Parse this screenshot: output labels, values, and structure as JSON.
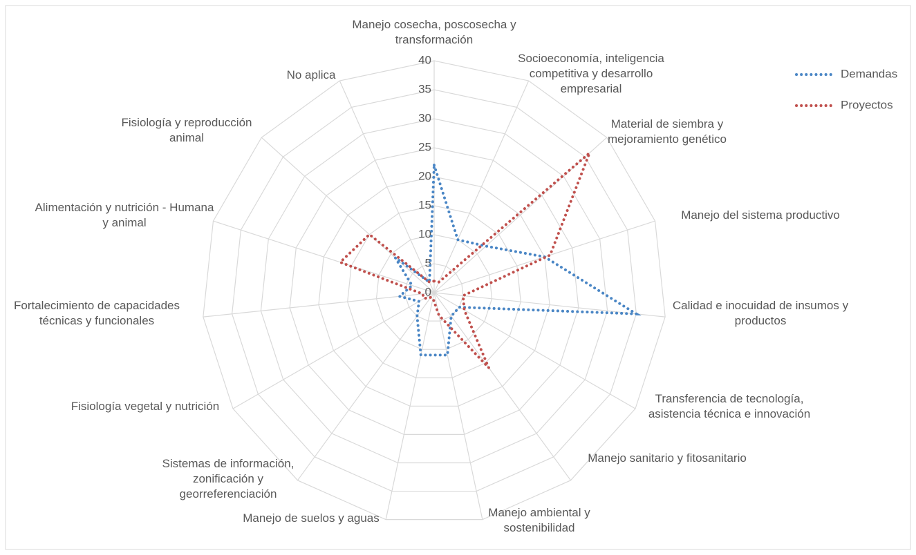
{
  "chart_data": {
    "type": "radar",
    "categories": [
      "Manejo cosecha, poscosecha y transformación",
      "Socioeconomía, inteligencia competitiva y desarrollo empresarial",
      "Material de siembra y mejoramiento genético",
      "Manejo del sistema productivo",
      "Calidad e inocuidad de insumos y productos",
      "Transferencia de tecnología, asistencia técnica e innovación",
      "Manejo sanitario y fitosanitario",
      "Manejo ambiental y sostenibilidad",
      "Manejo de suelos y aguas",
      "Sistemas de información, zonificación y georreferenciación",
      "Fisiología vegetal y nutrición",
      "Fortalecimiento de capacidades técnicas y funcionales",
      "Alimentación y nutrición - Humana y animal",
      "Fisiología y reproducción animal",
      "No aplica"
    ],
    "series": [
      {
        "name": "Demandas",
        "color": "#4a86c5",
        "values": [
          22,
          10,
          12,
          20,
          35,
          5,
          5,
          11,
          11,
          5,
          3,
          6,
          4,
          9,
          2
        ]
      },
      {
        "name": "Proyectos",
        "color": "#c0504d",
        "values": [
          2,
          2,
          36,
          21,
          5,
          6,
          16,
          4,
          1,
          1,
          2,
          2,
          17,
          15,
          2
        ]
      }
    ],
    "ylim": [
      0,
      40
    ],
    "yticks": [
      0,
      5,
      10,
      15,
      20,
      25,
      30,
      35,
      40
    ],
    "grid": true,
    "legend": "top-right"
  }
}
